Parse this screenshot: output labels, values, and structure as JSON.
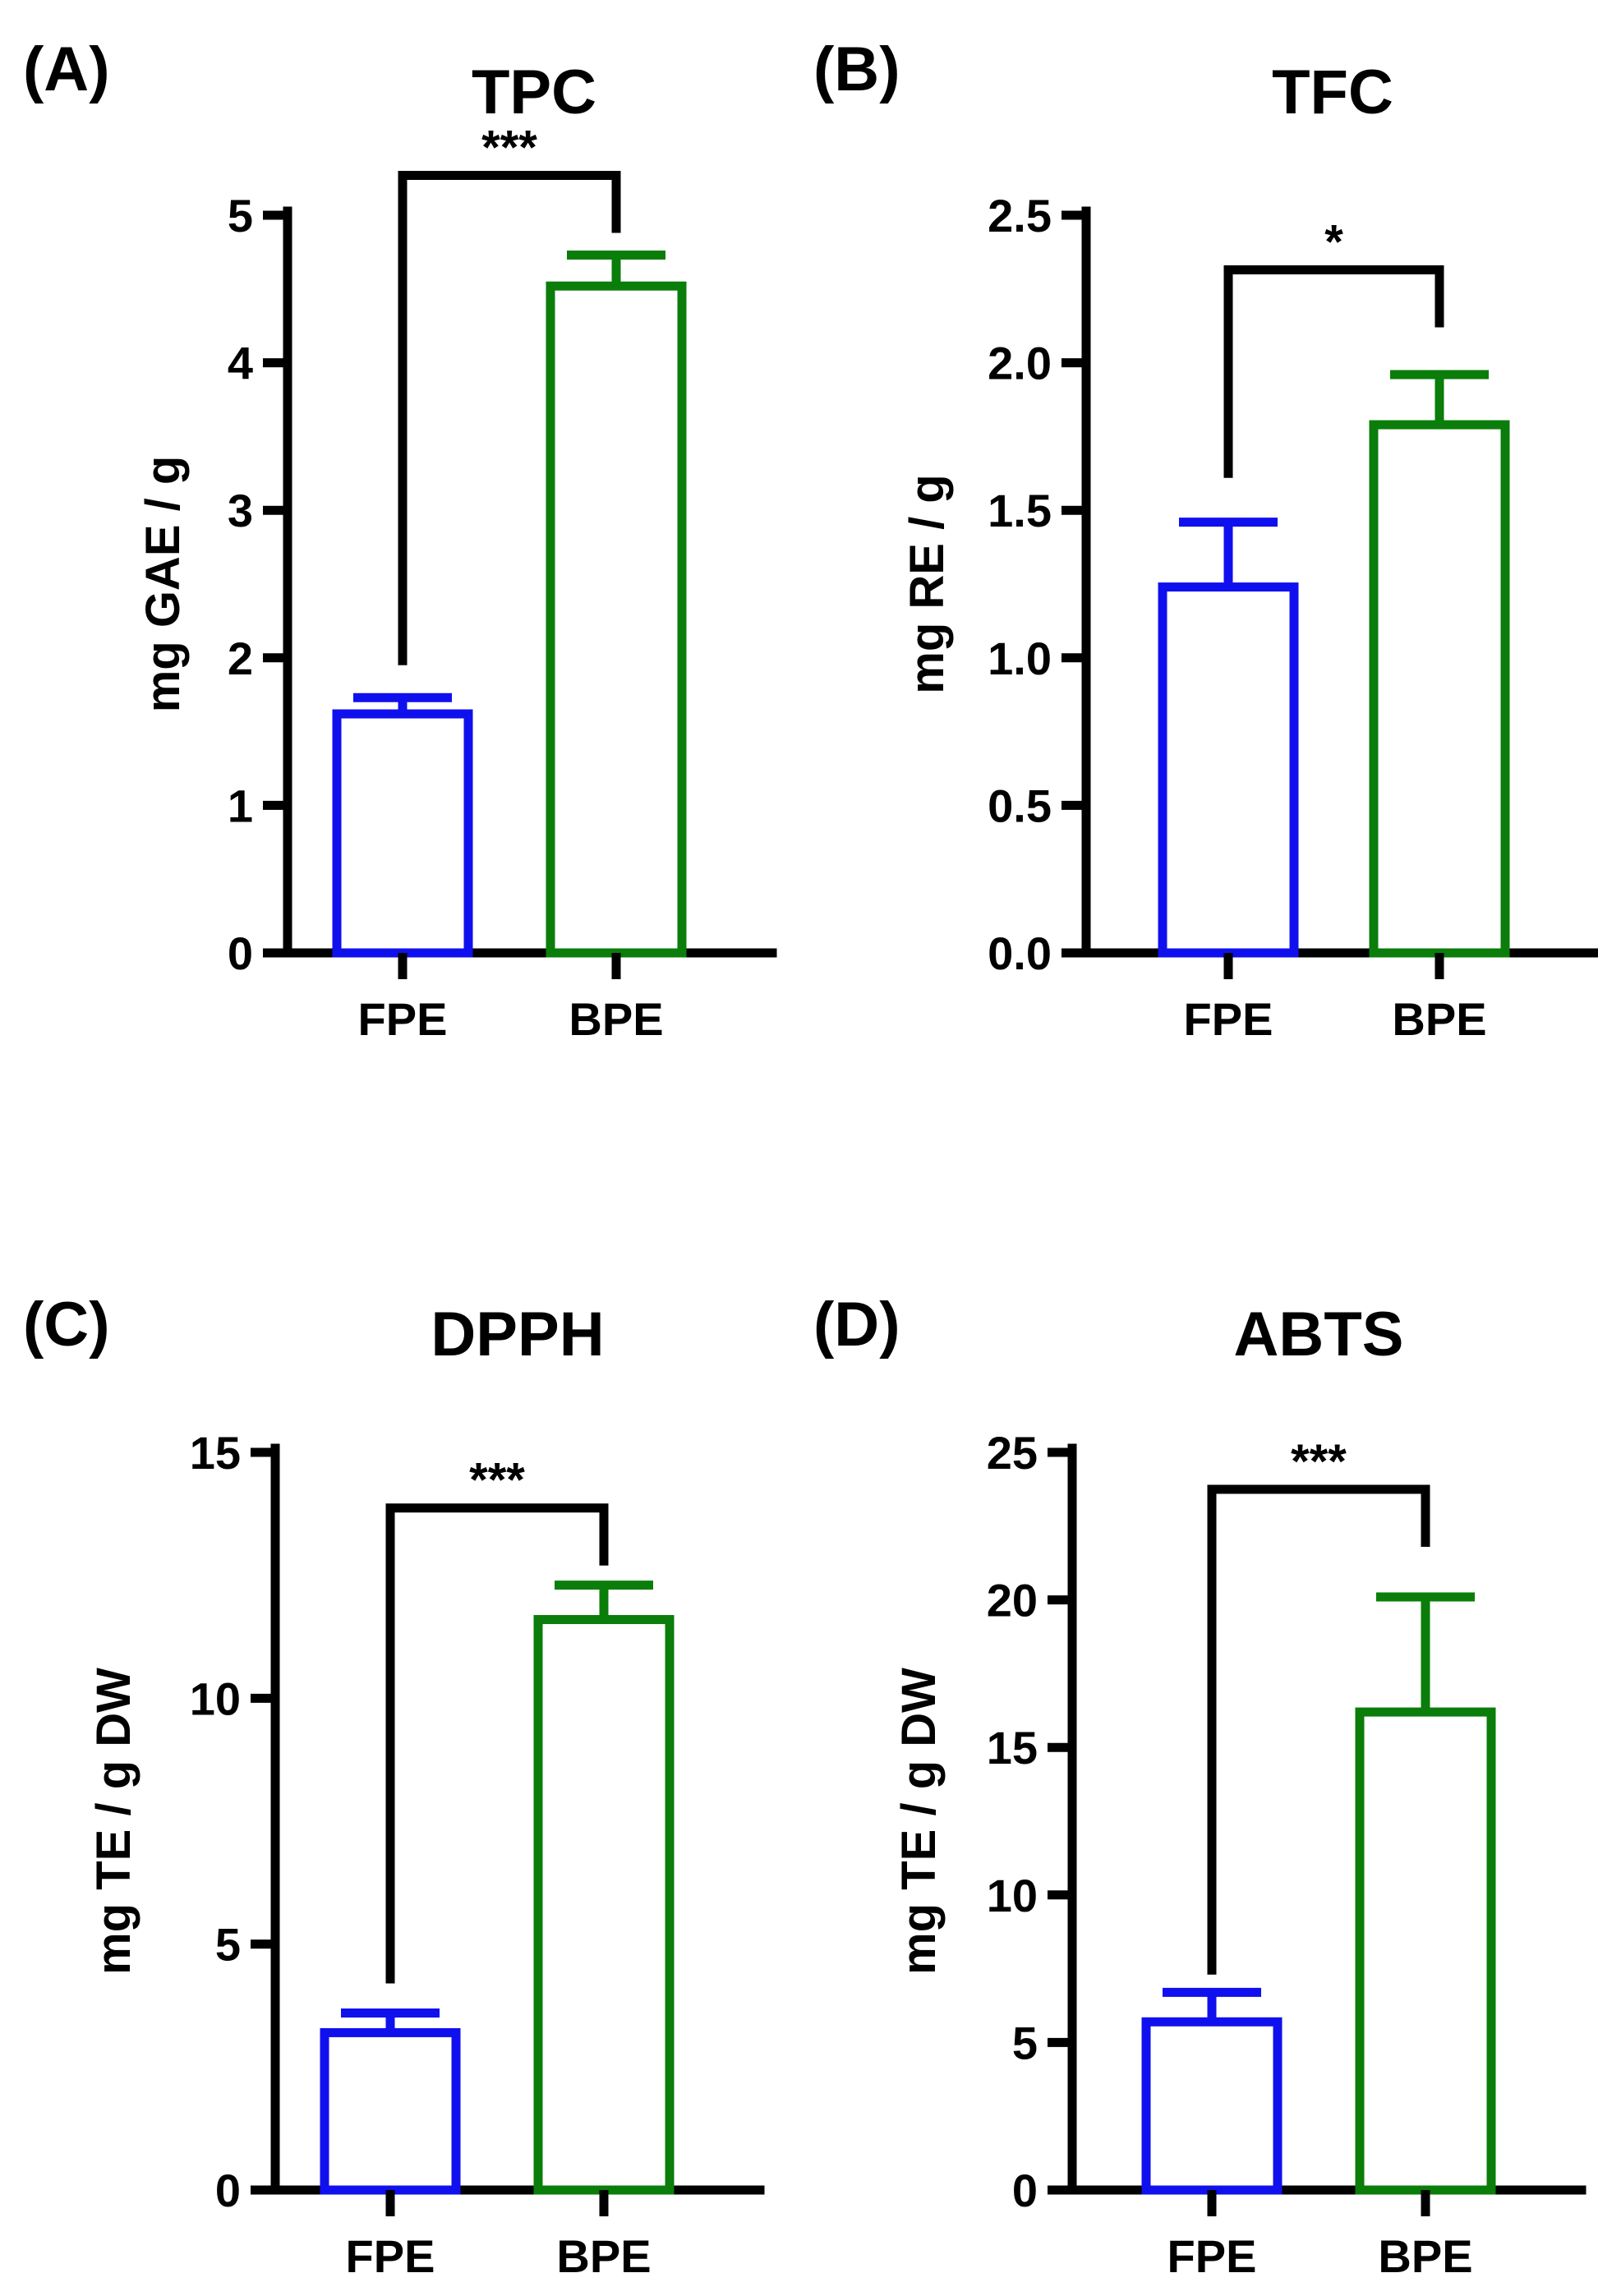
{
  "figure": {
    "panels": [
      "A",
      "B",
      "C",
      "D"
    ]
  },
  "chart_data": [
    {
      "panel_label": "(A)",
      "type": "bar",
      "title": "TPC",
      "ylabel": "mg GAE / g",
      "xlabel": "",
      "categories": [
        "FPE",
        "BPE"
      ],
      "values": [
        1.62,
        4.52
      ],
      "errors": [
        0.11,
        0.21
      ],
      "colors": [
        "#1010ee",
        "#0a7d0a"
      ],
      "ylim": [
        0,
        5
      ],
      "yticks": [
        0,
        1,
        2,
        3,
        4,
        5
      ],
      "ytick_labels": [
        "0",
        "1",
        "2",
        "3",
        "4",
        "5"
      ],
      "significance": "***",
      "bracket_start": [
        1.95,
        4.88
      ]
    },
    {
      "panel_label": "(B)",
      "type": "bar",
      "title": "TFC",
      "ylabel": "mg RE / g",
      "xlabel": "",
      "categories": [
        "FPE",
        "BPE"
      ],
      "values": [
        1.24,
        1.79
      ],
      "errors": [
        0.22,
        0.17
      ],
      "colors": [
        "#1010ee",
        "#0a7d0a"
      ],
      "ylim": [
        0,
        2.5
      ],
      "yticks": [
        0,
        0.5,
        1.0,
        1.5,
        2.0,
        2.5
      ],
      "ytick_labels": [
        "0.0",
        "0.5",
        "1.0",
        "1.5",
        "2.0",
        "2.5"
      ],
      "significance": "*",
      "bracket_start": [
        1.61,
        2.12
      ]
    },
    {
      "panel_label": "(C)",
      "type": "bar",
      "title": "DPPH",
      "ylabel": "mg TE / g DW",
      "xlabel": "",
      "categories": [
        "FPE",
        "BPE"
      ],
      "values": [
        3.2,
        11.6
      ],
      "errors": [
        0.4,
        0.7
      ],
      "colors": [
        "#1010ee",
        "#0a7d0a"
      ],
      "ylim": [
        0,
        15
      ],
      "yticks": [
        0,
        5,
        10,
        15
      ],
      "ytick_labels": [
        "0",
        "5",
        "10",
        "15"
      ],
      "significance": "***",
      "bracket_start": [
        4.2,
        12.7
      ]
    },
    {
      "panel_label": "(D)",
      "type": "bar",
      "title": "ABTS",
      "ylabel": "mg TE / g DW",
      "xlabel": "",
      "categories": [
        "FPE",
        "BPE"
      ],
      "values": [
        5.7,
        16.2
      ],
      "errors": [
        1.0,
        3.9
      ],
      "colors": [
        "#1010ee",
        "#0a7d0a"
      ],
      "ylim": [
        0,
        25
      ],
      "yticks": [
        0,
        5,
        10,
        15,
        20,
        25
      ],
      "ytick_labels": [
        "0",
        "5",
        "10",
        "15",
        "20",
        "25"
      ],
      "significance": "***",
      "bracket_start": [
        7.3,
        21.8
      ]
    }
  ]
}
